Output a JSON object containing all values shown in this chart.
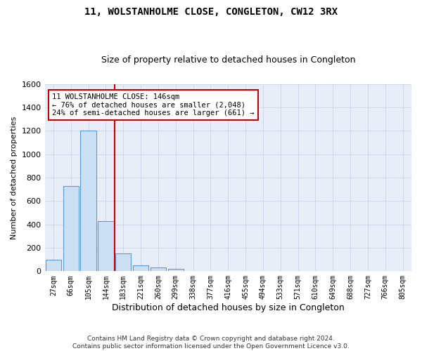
{
  "title": "11, WOLSTANHOLME CLOSE, CONGLETON, CW12 3RX",
  "subtitle": "Size of property relative to detached houses in Congleton",
  "xlabel": "Distribution of detached houses by size in Congleton",
  "ylabel": "Number of detached properties",
  "footer_line1": "Contains HM Land Registry data © Crown copyright and database right 2024.",
  "footer_line2": "Contains public sector information licensed under the Open Government Licence v3.0.",
  "categories": [
    "27sqm",
    "66sqm",
    "105sqm",
    "144sqm",
    "183sqm",
    "221sqm",
    "260sqm",
    "299sqm",
    "338sqm",
    "377sqm",
    "416sqm",
    "455sqm",
    "494sqm",
    "533sqm",
    "571sqm",
    "610sqm",
    "649sqm",
    "688sqm",
    "727sqm",
    "766sqm",
    "805sqm"
  ],
  "values": [
    100,
    730,
    1200,
    430,
    150,
    50,
    30,
    20,
    0,
    0,
    0,
    0,
    0,
    0,
    0,
    0,
    0,
    0,
    0,
    0,
    0
  ],
  "bar_color": "#cce0f5",
  "bar_edge_color": "#5b9bd5",
  "property_line_x": 3.5,
  "property_line_color": "#cc0000",
  "annotation_text": "11 WOLSTANHOLME CLOSE: 146sqm\n← 76% of detached houses are smaller (2,048)\n24% of semi-detached houses are larger (661) →",
  "annotation_box_color": "#cc0000",
  "ylim": [
    0,
    1600
  ],
  "yticks": [
    0,
    200,
    400,
    600,
    800,
    1000,
    1200,
    1400,
    1600
  ],
  "background_color": "#ffffff",
  "plot_bg_color": "#e8eef8",
  "grid_color": "#d0d8e8"
}
